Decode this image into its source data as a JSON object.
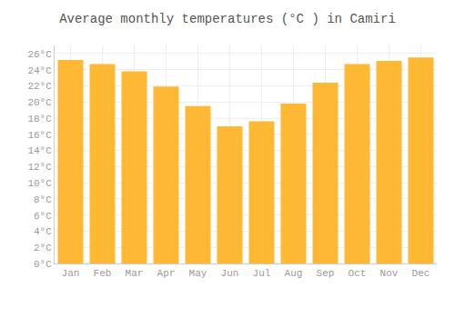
{
  "chart_data": {
    "type": "bar",
    "title": "Average monthly temperatures (°C ) in Camiri",
    "categories": [
      "Jan",
      "Feb",
      "Mar",
      "Apr",
      "May",
      "Jun",
      "Jul",
      "Aug",
      "Sep",
      "Oct",
      "Nov",
      "Dec"
    ],
    "values": [
      25.2,
      24.7,
      23.8,
      21.9,
      19.5,
      17.0,
      17.6,
      19.8,
      22.4,
      24.7,
      25.1,
      25.5
    ],
    "color": "#FFB833",
    "ylim": [
      0,
      27
    ],
    "yticks": [
      {
        "value": 0,
        "label": "0°C"
      },
      {
        "value": 2,
        "label": "2°C"
      },
      {
        "value": 4,
        "label": "4°C"
      },
      {
        "value": 6,
        "label": "6°C"
      },
      {
        "value": 8,
        "label": "8°C"
      },
      {
        "value": 10,
        "label": "10°C"
      },
      {
        "value": 12,
        "label": "12°C"
      },
      {
        "value": 14,
        "label": "14°C"
      },
      {
        "value": 16,
        "label": "16°C"
      },
      {
        "value": 18,
        "label": "18°C"
      },
      {
        "value": 20,
        "label": "20°C"
      },
      {
        "value": 22,
        "label": "22°C"
      },
      {
        "value": 24,
        "label": "24°C"
      },
      {
        "value": 26,
        "label": "26°C"
      }
    ],
    "grid": true
  }
}
